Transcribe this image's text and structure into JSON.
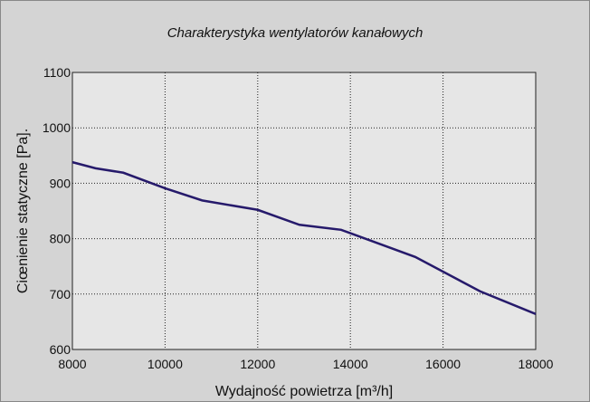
{
  "chart_data": {
    "type": "line",
    "title": "Charakterystyka wentylatorów kanałowych",
    "x_label": "Wydajność powietrza [m³/h]",
    "y_label": "Ciœnienie statyczne [Pa].",
    "x": [
      8000,
      8500,
      9100,
      10000,
      10800,
      12000,
      12900,
      13800,
      15400,
      16800,
      18000
    ],
    "series": [
      {
        "name": "",
        "color": "#261a6b",
        "values": [
          938,
          927,
          919,
          891,
          869,
          852,
          825,
          816,
          767,
          705,
          664
        ]
      }
    ],
    "xlim": [
      8000,
      18000
    ],
    "xticks": [
      8000,
      10000,
      12000,
      14000,
      16000,
      18000
    ],
    "ylim": [
      600,
      1100
    ],
    "yticks": [
      600,
      700,
      800,
      900,
      1000,
      1100
    ],
    "grid": true
  }
}
